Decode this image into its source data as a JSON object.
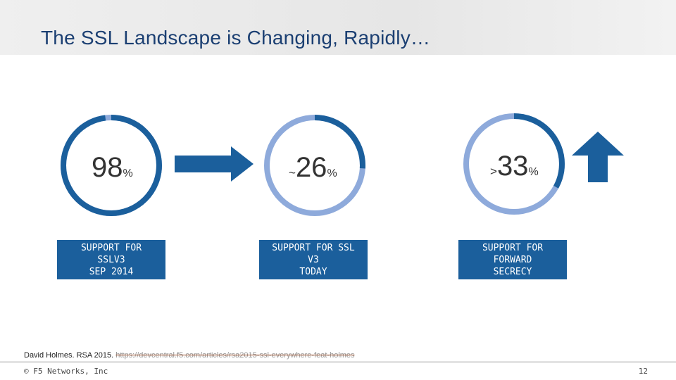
{
  "slide": {
    "title": "The SSL Landscape is Changing, Rapidly…",
    "stats": [
      {
        "prefix": "",
        "value": "98",
        "unit": "%",
        "percent": 98,
        "label_lines": [
          "SUPPORT FOR",
          "SSLV3",
          "SEP 2014"
        ]
      },
      {
        "prefix": "~",
        "value": "26",
        "unit": "%",
        "percent": 26,
        "label_lines": [
          "SUPPORT FOR SSL",
          "V3",
          "TODAY"
        ]
      },
      {
        "prefix": ">",
        "value": "33",
        "unit": "%",
        "percent": 33,
        "label_lines": [
          "SUPPORT FOR",
          "FORWARD",
          "SECRECY"
        ]
      }
    ],
    "citation_text": "David Holmes. RSA 2015.",
    "citation_link": "https://devcentral.f5.com/articles/rsa2015-ssl-everywhere-feat-holmes",
    "copyright": "© F5 Networks, Inc",
    "page_number": "12"
  },
  "colors": {
    "primary": "#1b5f9c",
    "ring_light": "#8eaadb",
    "ring_gap": "#5a8ac0",
    "title": "#1b3f72"
  },
  "icons": {
    "arrow_right": "arrow-right-icon",
    "arrow_up": "arrow-up-icon"
  }
}
